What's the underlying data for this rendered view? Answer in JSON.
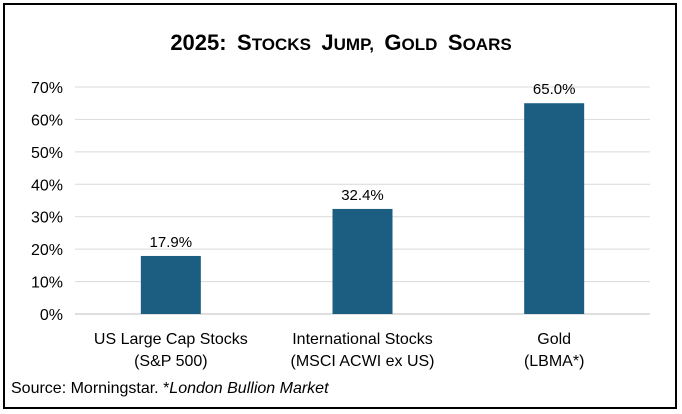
{
  "chart_data": {
    "type": "bar",
    "title": {
      "year": "2025:",
      "words": [
        {
          "cap": "S",
          "rest": "TOCKS"
        },
        {
          "cap": "J",
          "rest": "UMP,"
        },
        {
          "cap": "G",
          "rest": "OLD"
        },
        {
          "cap": "S",
          "rest": "OARS"
        }
      ]
    },
    "categories": [
      {
        "line1": "US Large Cap Stocks",
        "line2": "(S&P 500)"
      },
      {
        "line1": "International Stocks",
        "line2": "(MSCI ACWI ex US)"
      },
      {
        "line1": "Gold",
        "line2": "(LBMA*)"
      }
    ],
    "values": [
      17.9,
      32.4,
      65.0
    ],
    "value_labels": [
      "17.9%",
      "32.4%",
      "65.0%"
    ],
    "ylim": [
      0,
      70
    ],
    "yticks": [
      0,
      10,
      20,
      30,
      40,
      50,
      60,
      70
    ],
    "ytick_labels": [
      "0%",
      "10%",
      "20%",
      "30%",
      "40%",
      "50%",
      "60%",
      "70%"
    ],
    "xlabel": "",
    "ylabel": "",
    "grid": true,
    "bar_color": "#1b5e82",
    "grid_color": "#d9d9d9",
    "axis_color": "#bfbfbf"
  },
  "source": {
    "text": "Source: Morningstar. *",
    "italic": "London Bullion Market"
  }
}
